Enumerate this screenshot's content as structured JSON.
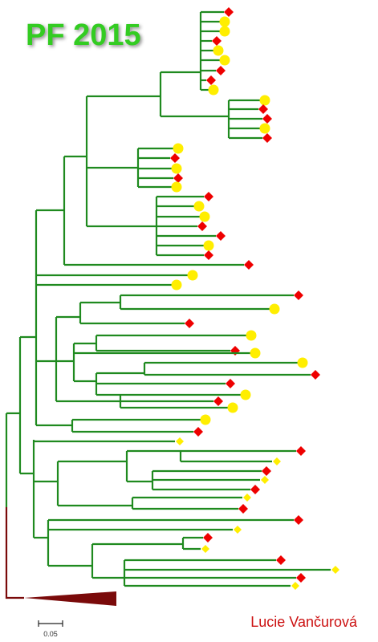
{
  "title": "PF 2015",
  "scale_bar": {
    "label": "0.05"
  },
  "author": "Lucie Vančurová"
}
